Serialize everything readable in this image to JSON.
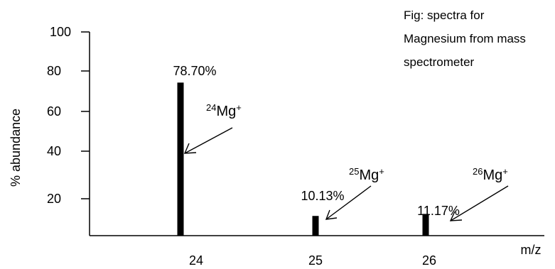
{
  "chart_data": {
    "type": "bar",
    "ylabel": "% abundance",
    "xlabel": "m/z",
    "categories": [
      "24",
      "25",
      "26"
    ],
    "values": [
      78.7,
      10.13,
      11.17
    ],
    "data_labels": [
      "78.70%",
      "10.13%",
      "11.17%"
    ],
    "y_ticks": [
      "100",
      "80",
      "60",
      "40",
      "20"
    ],
    "ylim": [
      0,
      100
    ],
    "grid": false,
    "annotations": [
      {
        "category": "24",
        "mass": "24",
        "symbol": "Mg",
        "charge": "+"
      },
      {
        "category": "25",
        "mass": "25",
        "symbol": "Mg",
        "charge": "+"
      },
      {
        "category": "26",
        "mass": "26",
        "symbol": "Mg",
        "charge": "+"
      }
    ],
    "caption_lines": [
      "Fig: spectra for",
      "Magnesium from mass",
      "spectrometer"
    ],
    "bar_color": "#000000"
  }
}
